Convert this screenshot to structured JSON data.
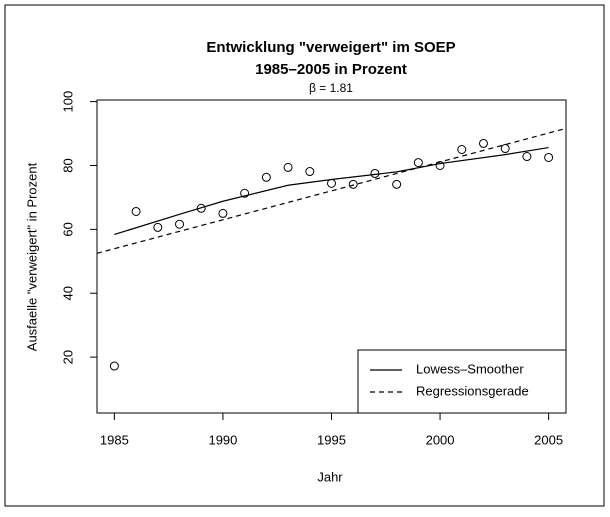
{
  "chart_data": {
    "type": "scatter",
    "title": "Entwicklung \"verweigert\" im SOEP",
    "title2": "1985–2005 in Prozent",
    "subtitle": "β = 1.81",
    "xlabel": "Jahr",
    "ylabel": "Ausfaelle \"verweigert\" in Prozent",
    "x": [
      1985,
      1986,
      1987,
      1988,
      1989,
      1990,
      1991,
      1992,
      1993,
      1994,
      1995,
      1996,
      1997,
      1998,
      1999,
      2000,
      2001,
      2002,
      2003,
      2004,
      2005
    ],
    "values": [
      17.2,
      65.6,
      60.6,
      61.6,
      66.6,
      65,
      71.3,
      76.3,
      79.4,
      78.1,
      74.4,
      74.1,
      77.5,
      74.1,
      80.9,
      80,
      85,
      86.9,
      85.3,
      82.8,
      82.5
    ],
    "color": "#000000",
    "series": [
      {
        "name": "Lowess–Smoother",
        "color": "#000000",
        "dashed": false,
        "x": [
          1985,
          1988,
          1990,
          1993,
          1995,
          1998,
          2000,
          2003,
          2005
        ],
        "values": [
          58.4,
          64.7,
          68.8,
          73.8,
          75.6,
          78,
          80.6,
          83.4,
          85.6
        ]
      },
      {
        "name": "Regressionsgerade",
        "color": "#000000",
        "dashed": true,
        "x": [
          1984.2,
          2005.8
        ],
        "values": [
          52.5,
          91.6
        ]
      }
    ],
    "xlim": [
      1984.2,
      2005.8
    ],
    "ylim": [
      2.5,
      100.5
    ],
    "xticks": [
      1985,
      1990,
      1995,
      2000,
      2005
    ],
    "yticks": [
      20,
      40,
      60,
      80,
      100
    ],
    "legend": "bottom-right"
  }
}
